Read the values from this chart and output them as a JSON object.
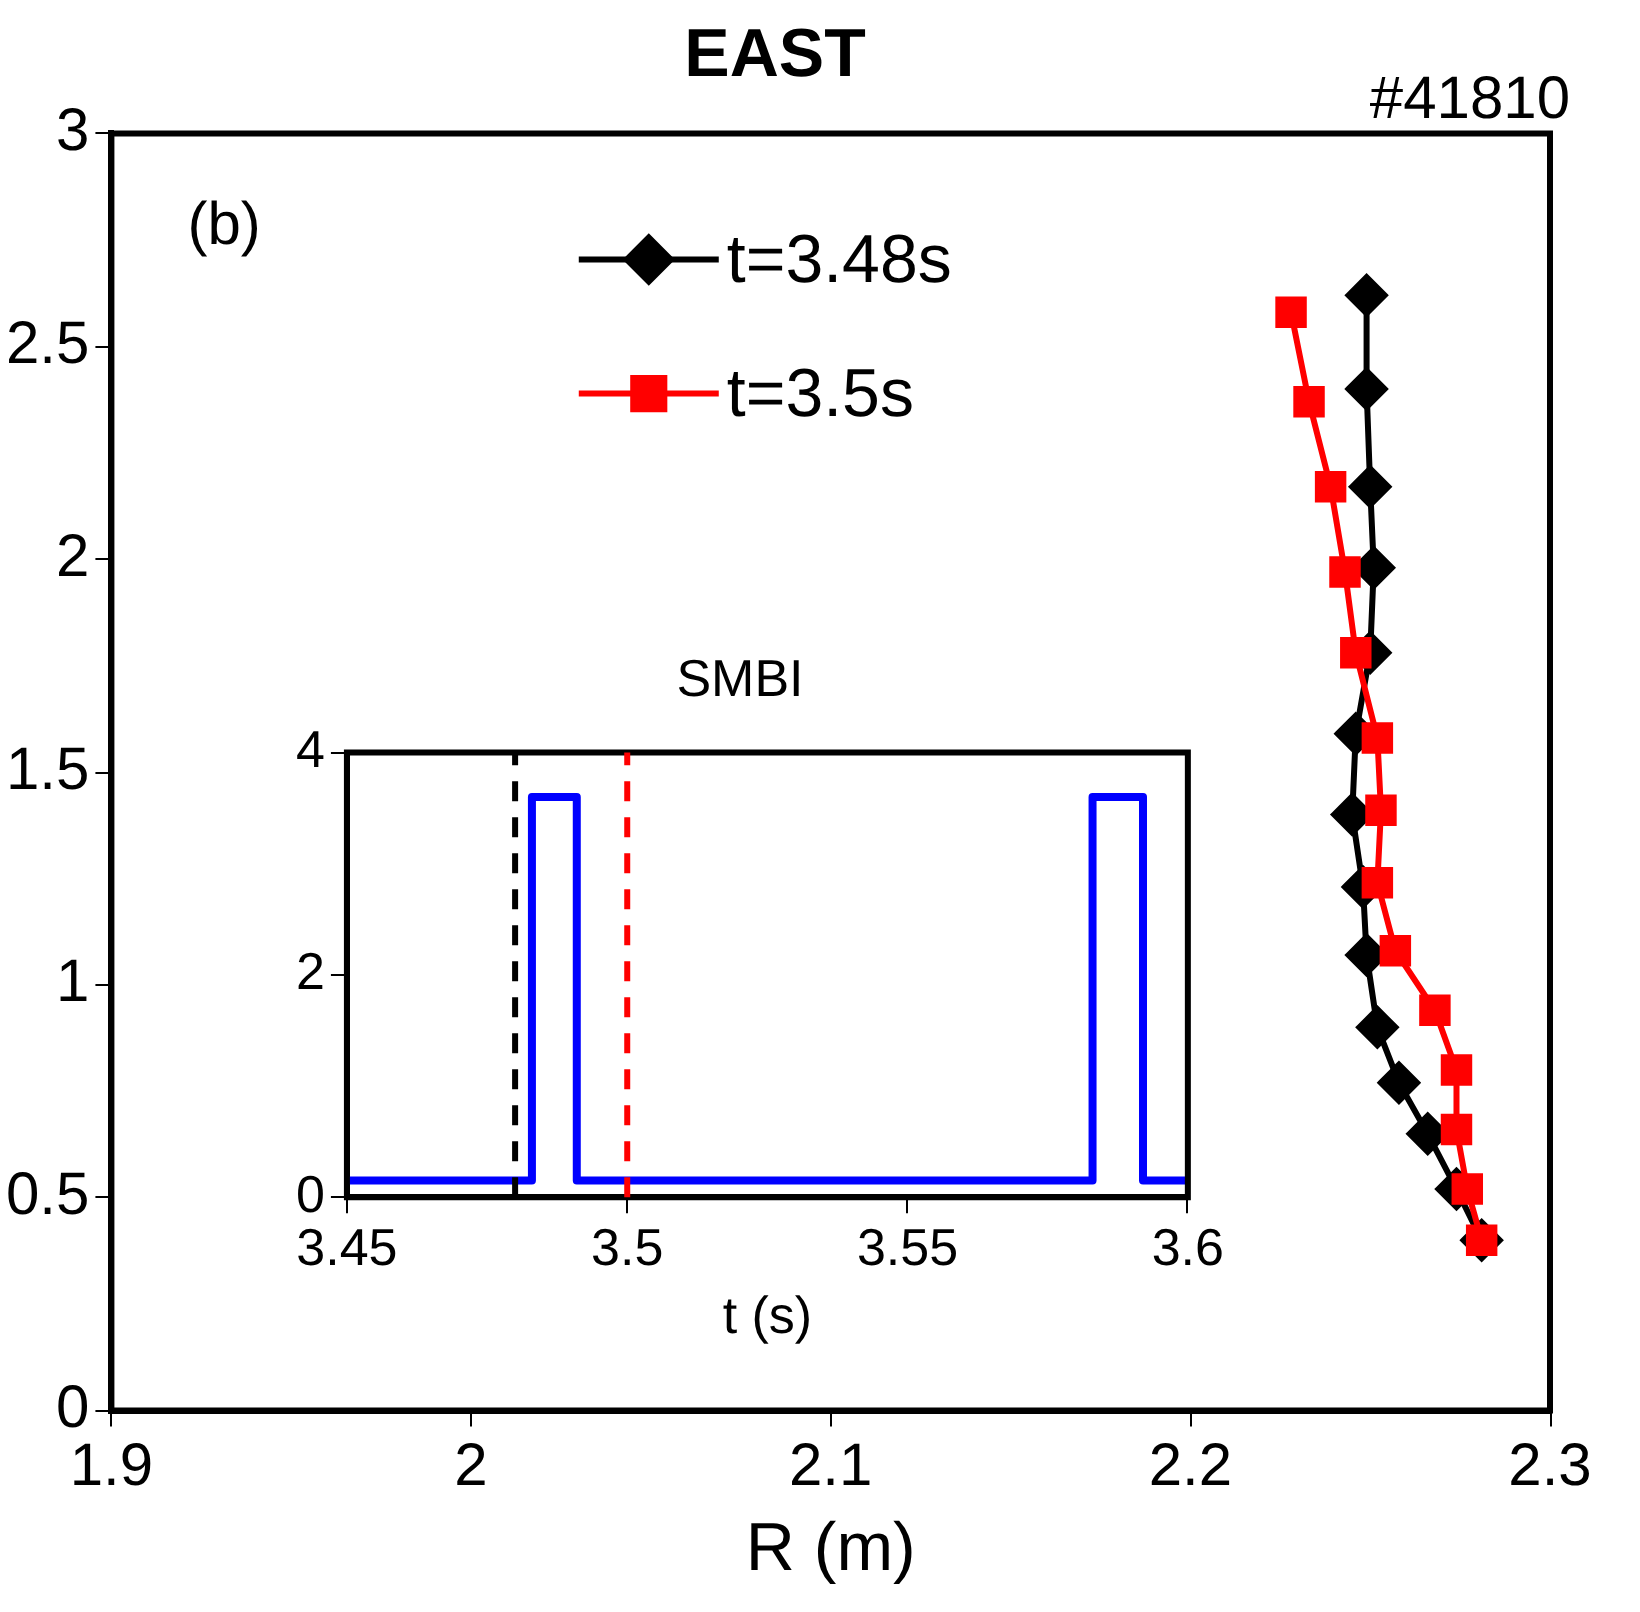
{
  "chart_data": [
    {
      "type": "line",
      "title": "EAST",
      "xlabel": "R (m)",
      "annotations": [
        "#41810",
        "(b)"
      ],
      "xlim": [
        1.9,
        2.3
      ],
      "xticks": [
        1.9,
        2,
        2.1,
        2.2,
        2.3
      ],
      "ylim": [
        0,
        3
      ],
      "yticks": [
        0,
        0.5,
        1,
        1.5,
        2,
        2.5,
        3
      ],
      "grid": false,
      "legend": "top",
      "series": [
        {
          "name": "t=3.48s",
          "color": "#000000",
          "marker": "diamond",
          "x": [
            2.249,
            2.249,
            2.25,
            2.251,
            2.25,
            2.246,
            2.245,
            2.248,
            2.249,
            2.252,
            2.258,
            2.266,
            2.274,
            2.281
          ],
          "values": [
            2.62,
            2.4,
            2.17,
            1.98,
            1.78,
            1.59,
            1.4,
            1.23,
            1.07,
            0.9,
            0.77,
            0.65,
            0.52,
            0.4
          ]
        },
        {
          "name": "t=3.5s",
          "color": "#ff0000",
          "marker": "square",
          "x": [
            2.228,
            2.233,
            2.239,
            2.243,
            2.246,
            2.252,
            2.253,
            2.252,
            2.257,
            2.268,
            2.274,
            2.274,
            2.277,
            2.281
          ],
          "values": [
            2.58,
            2.37,
            2.17,
            1.97,
            1.78,
            1.58,
            1.41,
            1.24,
            1.08,
            0.94,
            0.8,
            0.66,
            0.52,
            0.4
          ]
        }
      ]
    },
    {
      "type": "line",
      "title": "SMBI",
      "xlabel": "t (s)",
      "xlim": [
        3.45,
        3.6
      ],
      "xticks": [
        3.45,
        3.5,
        3.55,
        3.6
      ],
      "ylim": [
        0,
        4
      ],
      "yticks": [
        0,
        2,
        4
      ],
      "grid": false,
      "legend": false,
      "series": [
        {
          "color": "#0000ff",
          "x": [
            3.45,
            3.483,
            3.483,
            3.491,
            3.491,
            3.583,
            3.583,
            3.592,
            3.592,
            3.6
          ],
          "values": [
            0.15,
            0.15,
            3.6,
            3.6,
            0.15,
            0.15,
            3.6,
            3.6,
            0.15,
            0.15
          ]
        }
      ],
      "ref_lines": [
        {
          "axis": "x",
          "value": 3.48,
          "color": "#000000",
          "line_style": "dashed"
        },
        {
          "axis": "x",
          "value": 3.5,
          "color": "#ff0000",
          "line_style": "dashed"
        }
      ]
    }
  ]
}
